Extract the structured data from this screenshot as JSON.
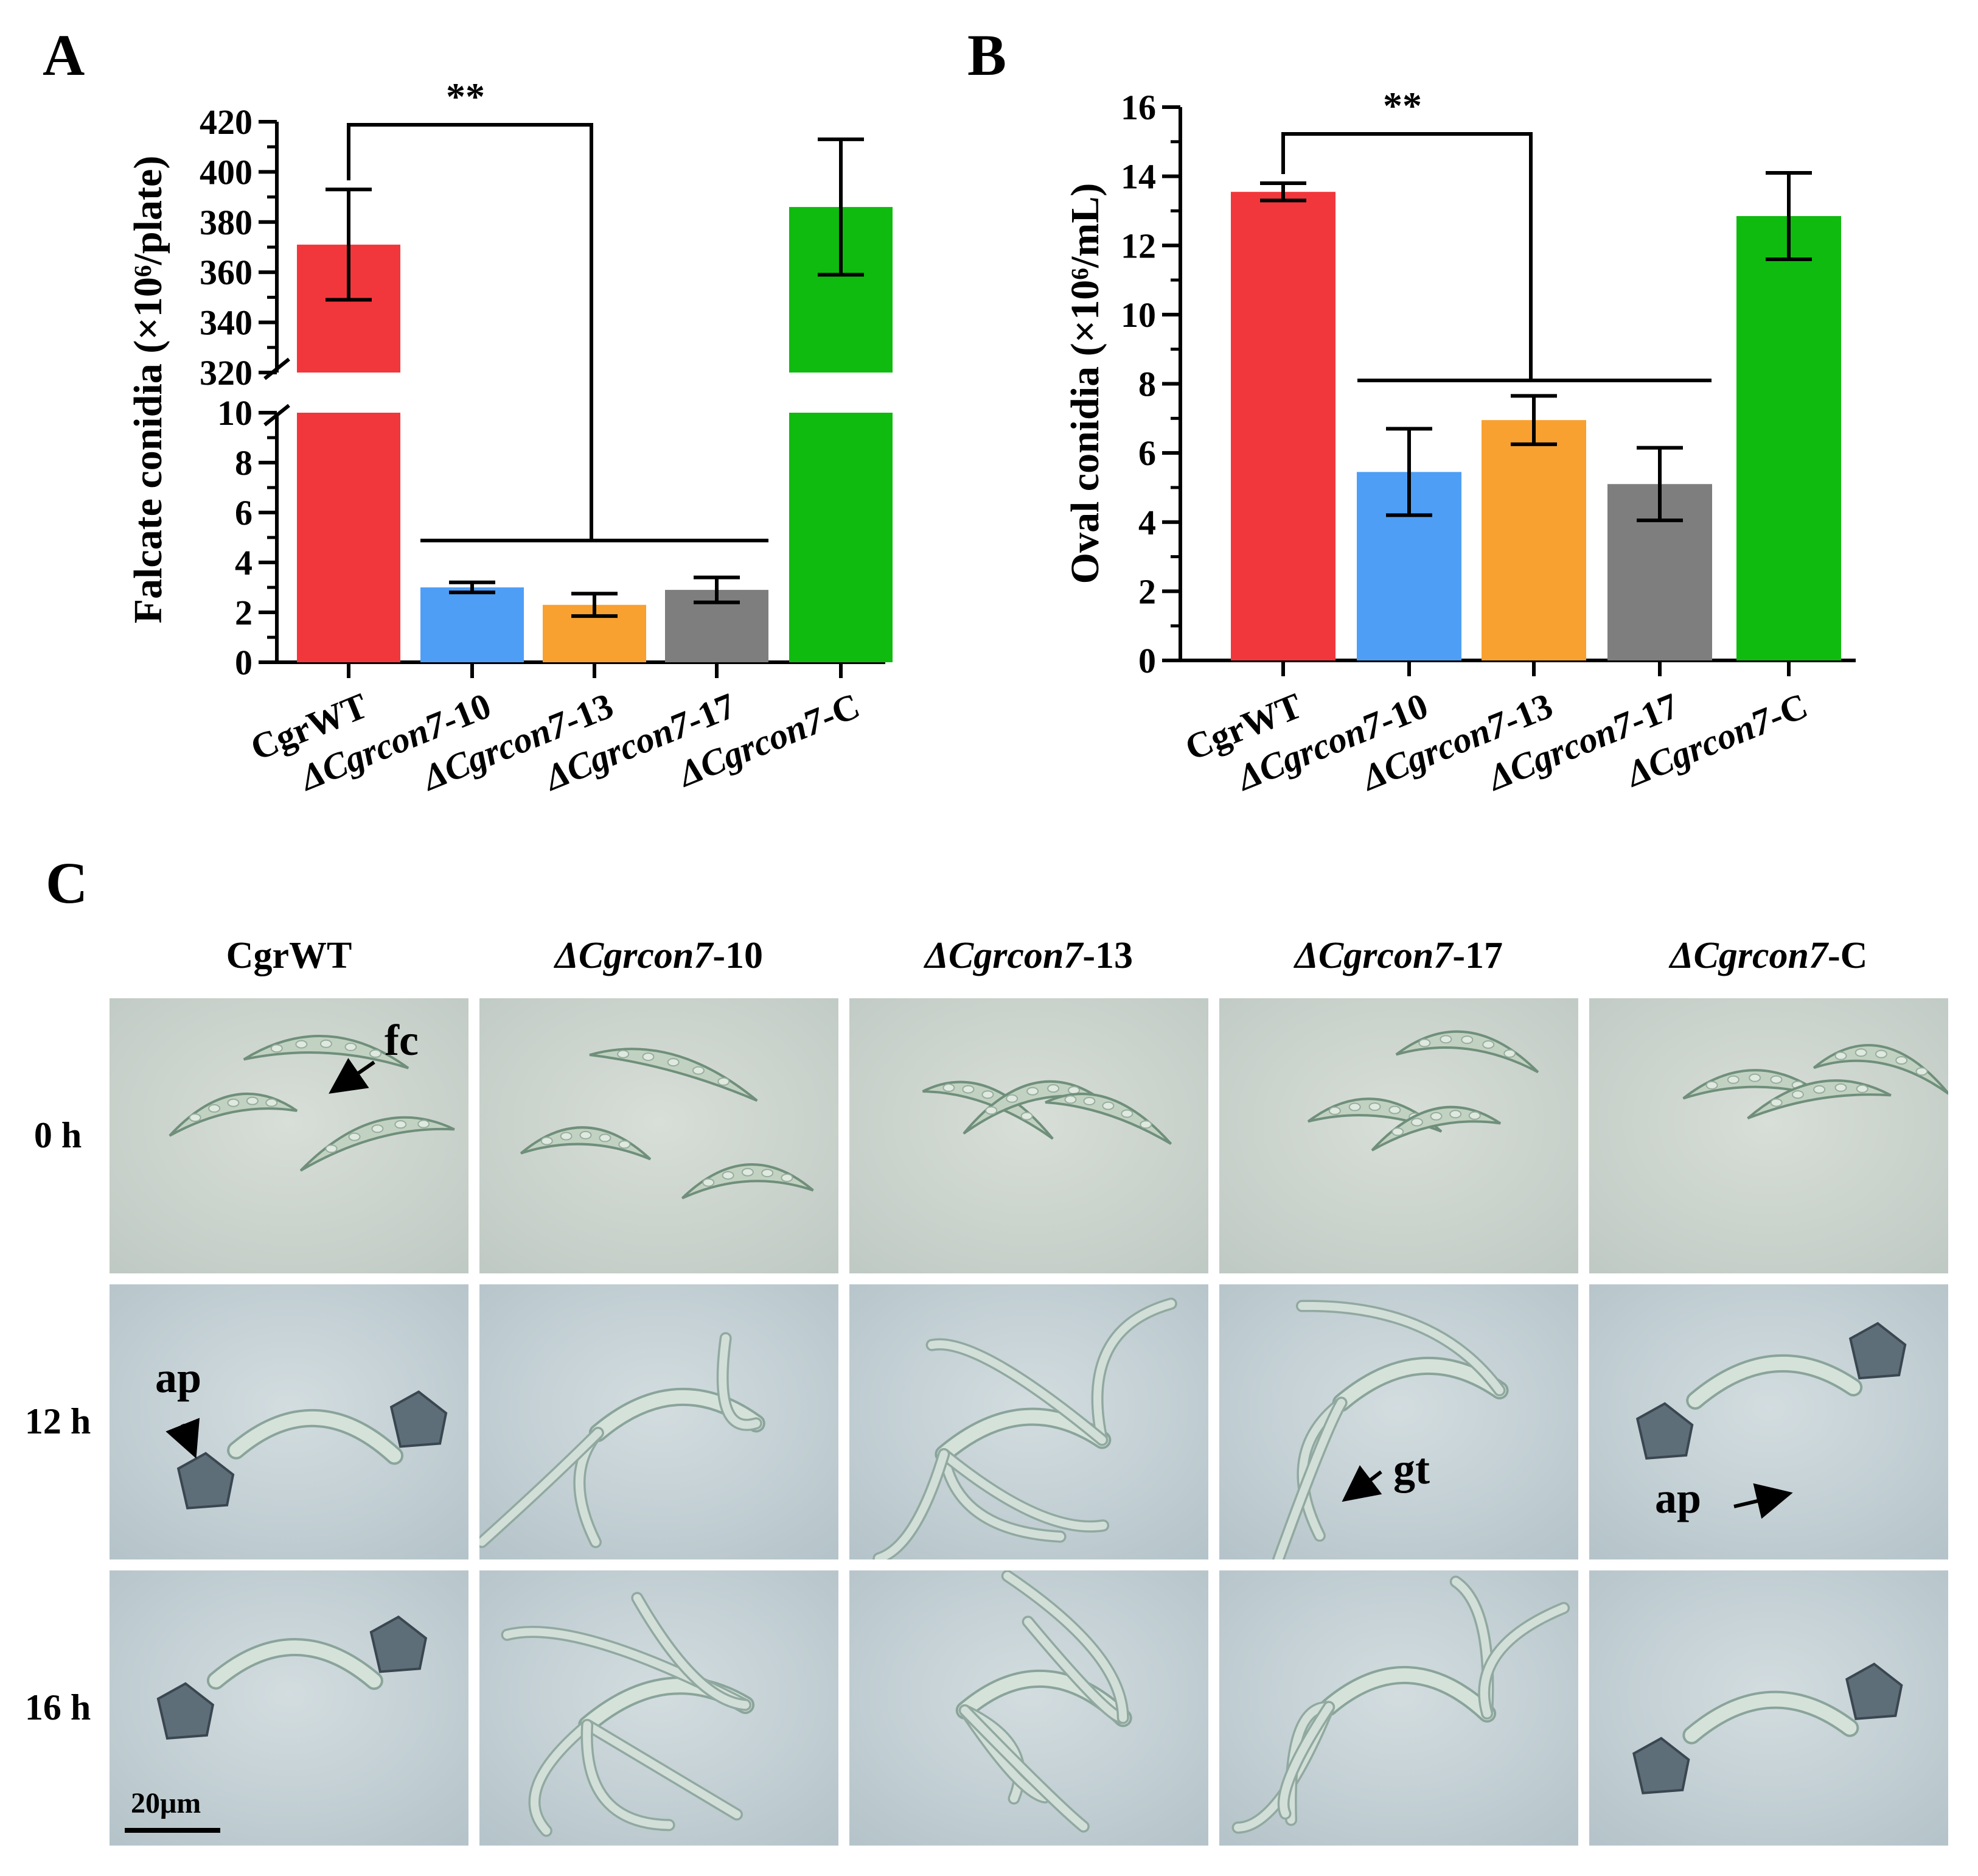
{
  "panels": {
    "a": "A",
    "b": "B",
    "c": "C"
  },
  "chart_data": [
    {
      "type": "bar",
      "panel": "A",
      "ylabel": "Falcate conidia (×10⁶/plate)",
      "categories": [
        "CgrWT",
        "ΔCgrcon7-10",
        "ΔCgrcon7-13",
        "ΔCgrcon7-17",
        "ΔCgrcon7-C"
      ],
      "values": [
        371,
        3.0,
        2.3,
        2.9,
        386
      ],
      "errors": [
        22,
        0.2,
        0.45,
        0.5,
        27
      ],
      "colors": [
        "#f2373c",
        "#4f9ef6",
        "#f8a030",
        "#7e7e7e",
        "#0fbb0f"
      ],
      "axis_break": {
        "lower": [
          0,
          10
        ],
        "upper": [
          320,
          420
        ]
      },
      "ytick_labels_lower": [
        "0",
        "2",
        "4",
        "6",
        "8",
        "10"
      ],
      "ytick_labels_upper": [
        "320",
        "340",
        "360",
        "380",
        "400",
        "420"
      ],
      "significance": "**"
    },
    {
      "type": "bar",
      "panel": "B",
      "ylabel": "Oval conidia (×10⁶/mL)",
      "categories": [
        "CgrWT",
        "ΔCgrcon7-10",
        "ΔCgrcon7-13",
        "ΔCgrcon7-17",
        "ΔCgrcon7-C"
      ],
      "values": [
        13.55,
        5.45,
        6.95,
        5.1,
        12.85
      ],
      "errors": [
        0.25,
        1.25,
        0.7,
        1.05,
        1.25
      ],
      "colors": [
        "#f2373c",
        "#4f9ef6",
        "#f8a030",
        "#7e7e7e",
        "#0fbb0f"
      ],
      "ylim": [
        0,
        16
      ],
      "ytick_labels": [
        "0",
        "2",
        "4",
        "6",
        "8",
        "10",
        "12",
        "14",
        "16"
      ],
      "significance": "**"
    }
  ],
  "micrographs": {
    "columns": [
      "CgrWT",
      "ΔCgrcon7-10",
      "ΔCgrcon7-13",
      "ΔCgrcon7-17",
      "ΔCgrcon7-C"
    ],
    "rows": [
      "0 h",
      "12 h",
      "16 h"
    ],
    "annotations": {
      "fc": "fc",
      "ap1": "ap",
      "gt": "gt",
      "ap2": "ap"
    },
    "scale_bar": "20μm"
  }
}
